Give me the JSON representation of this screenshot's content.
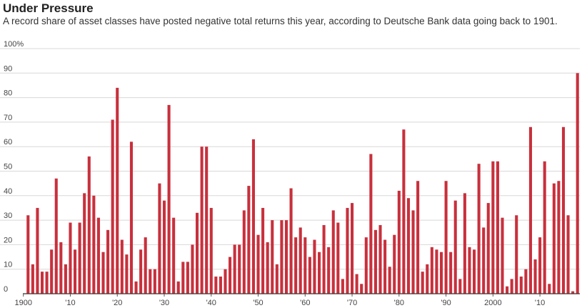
{
  "header": {
    "title": "Under Pressure",
    "subtitle": "A record share of asset classes have posted negative total returns this year, according to Deutsche Bank data going back to 1901."
  },
  "colors": {
    "bar": "#c8303c",
    "grid": "#d8d8d8",
    "text": "#444444"
  },
  "chart_data": {
    "type": "bar",
    "title": "Under Pressure",
    "subtitle": "A record share of asset classes have posted negative total returns this year, according to Deutsche Bank data going back to 1901.",
    "xlabel": "",
    "ylabel": "",
    "ylim": [
      0,
      100
    ],
    "y_ticks": [
      0,
      10,
      20,
      30,
      40,
      50,
      60,
      70,
      80,
      90,
      100
    ],
    "y_tick_labels": [
      "0",
      "10",
      "20",
      "30",
      "40",
      "50",
      "60",
      "70",
      "80",
      "90",
      "100%"
    ],
    "x_ticks": [
      1900,
      1910,
      1920,
      1930,
      1940,
      1950,
      1960,
      1970,
      1980,
      1990,
      2000,
      2010
    ],
    "x_tick_labels": [
      "1900",
      "'10",
      "'20",
      "'30",
      "'40",
      "'50",
      "'60",
      "'70",
      "'80",
      "'90",
      "2000",
      "'10"
    ],
    "grid": true,
    "start_year": 1901,
    "values": [
      32,
      12,
      35,
      9,
      9,
      18,
      47,
      21,
      12,
      29,
      18,
      29,
      41,
      56,
      40,
      31,
      17,
      26,
      71,
      84,
      22,
      16,
      62,
      5,
      18,
      23,
      10,
      10,
      45,
      38,
      77,
      31,
      5,
      13,
      13,
      20,
      33,
      60,
      60,
      35,
      7,
      7,
      10,
      15,
      20,
      20,
      34,
      44,
      63,
      24,
      35,
      21,
      30,
      12,
      30,
      30,
      43,
      23,
      27,
      23,
      15,
      22,
      17,
      28,
      19,
      34,
      29,
      6,
      35,
      37,
      8,
      4,
      23,
      57,
      26,
      28,
      22,
      11,
      24,
      42,
      67,
      39,
      34,
      46,
      9,
      12,
      19,
      18,
      17,
      46,
      17,
      38,
      6,
      41,
      19,
      18,
      53,
      27,
      37,
      54,
      54,
      31,
      3,
      6,
      32,
      7,
      10,
      68,
      14,
      23,
      54,
      4,
      45,
      46,
      68,
      32,
      1,
      90
    ]
  }
}
